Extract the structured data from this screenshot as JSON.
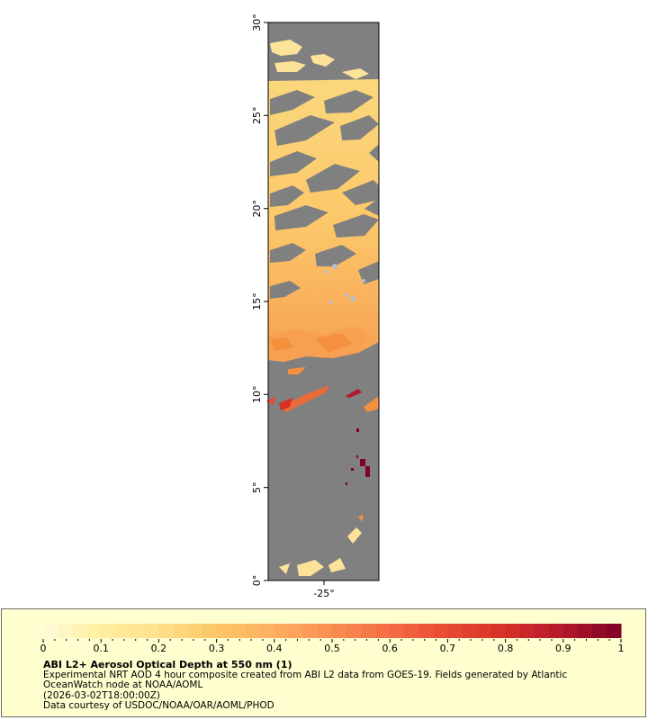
{
  "map": {
    "lat_ticks": [
      "0°",
      "5°",
      "10°",
      "15°",
      "20°",
      "25°",
      "30°"
    ],
    "lon_ticks": [
      "-25°"
    ],
    "background_color": "#808080",
    "data_extent": {
      "lat_min": 0,
      "lat_max": 30
    }
  },
  "colorbar": {
    "tick_labels": [
      "0",
      "0.1",
      "0.2",
      "0.3",
      "0.4",
      "0.5",
      "0.6",
      "0.7",
      "0.8",
      "0.9",
      "1"
    ],
    "range": [
      0,
      1
    ],
    "colors": [
      "#fffbd8",
      "#ffef9f",
      "#fee08b",
      "#fdc766",
      "#fdae61",
      "#f98e52",
      "#f46d43",
      "#e84a33",
      "#d73027",
      "#b2182b",
      "#800026"
    ]
  },
  "legend": {
    "title": "ABI L2+ Aerosol Optical Depth at 550 nm (1)",
    "line1": "Experimental NRT AOD 4 hour composite created from ABI L2 data from GOES-19. Fields generated by Atlantic",
    "line2": "OceanWatch node at NOAA/AOML",
    "line3": "(2026-03-02T18:00:00Z)",
    "line4": "Data courtesy of USDOC/NOAA/OAR/AOML/PHOD"
  }
}
